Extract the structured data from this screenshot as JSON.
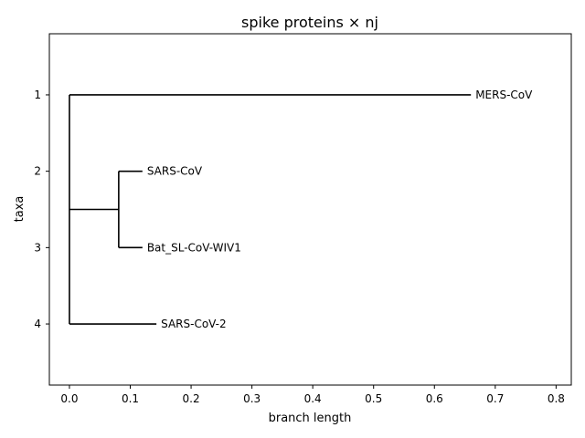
{
  "chart_data": {
    "type": "dendrogram",
    "title": "spike proteins × nj",
    "xlabel": "branch length",
    "ylabel": "taxa",
    "xlim": [
      -0.033,
      0.825
    ],
    "ylim": [
      4.8,
      0.2
    ],
    "xticks": [
      0.0,
      0.1,
      0.2,
      0.3,
      0.4,
      0.5,
      0.6,
      0.7,
      0.8
    ],
    "xtick_labels": [
      "0.0",
      "0.1",
      "0.2",
      "0.3",
      "0.4",
      "0.5",
      "0.6",
      "0.7",
      "0.8"
    ],
    "yticks": [
      1,
      2,
      3,
      4
    ],
    "ytick_labels": [
      "1",
      "2",
      "3",
      "4"
    ],
    "grid": false,
    "leaves": [
      {
        "name": "MERS-CoV",
        "y": 1,
        "x": 0.66
      },
      {
        "name": "SARS-CoV",
        "y": 2,
        "x": 0.12
      },
      {
        "name": "Bat_SL-CoV-WIV1",
        "y": 3,
        "x": 0.12
      },
      {
        "name": "SARS-CoV-2",
        "y": 4,
        "x": 0.143
      }
    ],
    "clades": [
      {
        "x": 0.0,
        "y_top": 1,
        "y_bottom": 4
      },
      {
        "x": 0.081,
        "y_top": 2,
        "y_bottom": 3
      }
    ],
    "branches": [
      {
        "x0": 0.0,
        "x1": 0.66,
        "y": 1
      },
      {
        "x0": 0.081,
        "x1": 0.12,
        "y": 2
      },
      {
        "x0": 0.081,
        "x1": 0.12,
        "y": 3
      },
      {
        "x0": 0.0,
        "x1": 0.081,
        "y": 2.5
      },
      {
        "x0": 0.0,
        "x1": 0.143,
        "y": 4
      }
    ]
  }
}
